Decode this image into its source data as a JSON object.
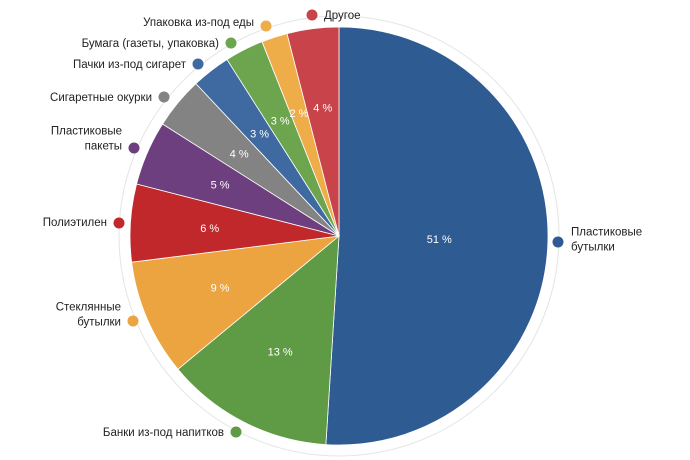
{
  "chart_data": {
    "type": "pie",
    "title": "",
    "slices": [
      {
        "name": "Пластиковые бутылки",
        "value": 51,
        "label": "51 %",
        "color": "#2f5b93",
        "legend_lines": [
          "Пластиковые",
          "бутылки"
        ]
      },
      {
        "name": "Банки из-под напитков",
        "value": 13,
        "label": "13 %",
        "color": "#5f9b45",
        "legend_lines": [
          "Банки из-под напитков"
        ]
      },
      {
        "name": "Стеклянные бутылки",
        "value": 9,
        "label": "9 %",
        "color": "#eba43f",
        "legend_lines": [
          "Стеклянные",
          "бутылки"
        ]
      },
      {
        "name": "Полиэтилен",
        "value": 6,
        "label": "6 %",
        "color": "#c0282c",
        "legend_lines": [
          "Полиэтилен"
        ]
      },
      {
        "name": "Пластиковые пакеты",
        "value": 5,
        "label": "5 %",
        "color": "#6e3f7f",
        "legend_lines": [
          "Пластиковые",
          "пакеты"
        ]
      },
      {
        "name": "Сигаретные окурки",
        "value": 4,
        "label": "4 %",
        "color": "#838383",
        "legend_lines": [
          "Сигаретные окурки"
        ]
      },
      {
        "name": "Пачки из-под сигарет",
        "value": 3,
        "label": "3 %",
        "color": "#3e6aa1",
        "legend_lines": [
          "Пачки из-под сигарет"
        ]
      },
      {
        "name": "Бумага (газеты, упаковка)",
        "value": 3,
        "label": "3 %",
        "color": "#6da54f",
        "legend_lines": [
          "Бумага (газеты, упаковка)"
        ]
      },
      {
        "name": "Упаковка из-под еды",
        "value": 2,
        "label": "2 %",
        "color": "#efad4a",
        "legend_lines": [
          "Упаковка из-под еды"
        ]
      },
      {
        "name": "Другое",
        "value": 4,
        "label": "4 %",
        "color": "#c9444a",
        "legend_lines": [
          "Другое"
        ]
      }
    ],
    "legend_placement": "around"
  }
}
